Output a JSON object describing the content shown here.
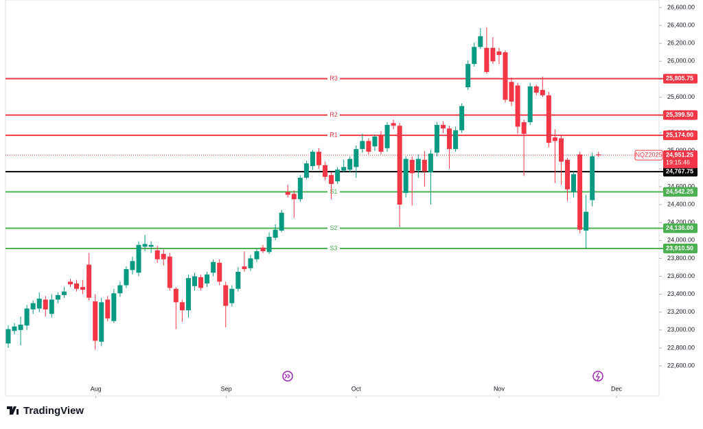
{
  "chart_data": {
    "type": "candlestick",
    "up_color": "#089981",
    "down_color": "#f23645",
    "xlim": [
      -0.44,
      104.75
    ],
    "xticks": [
      {
        "value": 14.1,
        "label": "Aug"
      },
      {
        "value": 35.1,
        "label": "Sep"
      },
      {
        "value": 56,
        "label": "Oct"
      },
      {
        "value": 79,
        "label": "Nov"
      },
      {
        "value": 97.9,
        "label": "Dec"
      }
    ],
    "ylim": [
      22263,
      26684
    ],
    "yticks": [
      {
        "value": 22600,
        "label": "22,600.00"
      },
      {
        "value": 22800,
        "label": "22,800.00"
      },
      {
        "value": 23000,
        "label": "23,000.00"
      },
      {
        "value": 23200,
        "label": "23,200.00"
      },
      {
        "value": 23400,
        "label": "23,400.00"
      },
      {
        "value": 23600,
        "label": "23,600.00"
      },
      {
        "value": 23800,
        "label": "23,800.00"
      },
      {
        "value": 24000,
        "label": "24,000.00"
      },
      {
        "value": 24200,
        "label": "24,200.00"
      },
      {
        "value": 24400,
        "label": "24,400.00"
      },
      {
        "value": 24600,
        "label": "24,600.00"
      },
      {
        "value": 24800,
        "label": "24,800.00"
      },
      {
        "value": 25000,
        "label": "25,000.00"
      },
      {
        "value": 25200,
        "label": "25,200.00"
      },
      {
        "value": 25400,
        "label": "25,400.00"
      },
      {
        "value": 25600,
        "label": "25,600.00"
      },
      {
        "value": 25800,
        "label": "25,800.00"
      },
      {
        "value": 26000,
        "label": "26,000.00"
      },
      {
        "value": 26200,
        "label": "26,200.00"
      },
      {
        "value": 26400,
        "label": "26,400.00"
      },
      {
        "value": 26600,
        "label": "26,600.00"
      }
    ],
    "open": [
      22850,
      22990,
      23000,
      23050,
      23230,
      23240,
      23340,
      23180,
      23340,
      23390,
      23540,
      23520,
      23480,
      23730,
      23320,
      22870,
      23340,
      23100,
      23410,
      23500,
      23670,
      23640,
      23930,
      23930,
      23890,
      23850,
      23820,
      23460,
      23310,
      23220,
      23490,
      23590,
      23520,
      23640,
      23750,
      23500,
      23300,
      23460,
      23710,
      23690,
      23790,
      23920,
      23870,
      24030,
      24110,
      24540,
      24520,
      24460,
      24700,
      24830,
      24990,
      24840,
      24730,
      24660,
      24780,
      24790,
      24820,
      25020,
      25110,
      25050,
      25170,
      25030,
      25310,
      25280,
      24530,
      24900,
      24780,
      24900,
      24760,
      24980,
      25290,
      25250,
      25020,
      25230,
      25710,
      25970,
      26160,
      26150,
      26150,
      26110,
      26100,
      25770,
      25730,
      25320,
      25320,
      25720,
      25680,
      25620,
      25150,
      25140,
      24900,
      24540,
      24960,
      24110,
      24450,
      24960
    ],
    "high": [
      23050,
      23080,
      23150,
      23280,
      23330,
      23420,
      23380,
      23400,
      23420,
      23480,
      23570,
      23560,
      23560,
      23860,
      23400,
      23360,
      23380,
      23460,
      23540,
      23710,
      23820,
      23990,
      24060,
      23990,
      23940,
      23900,
      23860,
      23480,
      23340,
      23620,
      23640,
      23620,
      23650,
      23790,
      23790,
      23540,
      23500,
      23700,
      23880,
      23840,
      23910,
      23950,
      24090,
      24180,
      24340,
      24620,
      24560,
      24730,
      24890,
      25010,
      25030,
      24880,
      24760,
      24820,
      24900,
      24940,
      25060,
      25190,
      25140,
      25180,
      25220,
      25320,
      25350,
      25310,
      24940,
      24940,
      24960,
      25000,
      25010,
      25320,
      25330,
      25280,
      25270,
      25530,
      26010,
      26210,
      26370,
      26380,
      26270,
      26150,
      26120,
      25820,
      25760,
      25350,
      25760,
      25740,
      25830,
      25660,
      25240,
      25180,
      24920,
      24770,
      24990,
      24510,
      24980,
      24990
    ],
    "low": [
      22800,
      22950,
      22830,
      23000,
      23180,
      23200,
      23150,
      23140,
      23300,
      23360,
      23480,
      23430,
      23400,
      23330,
      22780,
      22820,
      23100,
      23080,
      23370,
      23470,
      23620,
      23600,
      23880,
      23860,
      23750,
      23720,
      23440,
      23010,
      23090,
      23140,
      23440,
      23440,
      23480,
      23600,
      23500,
      23030,
      23260,
      23430,
      23650,
      23660,
      23760,
      23860,
      23850,
      24000,
      24090,
      24480,
      24250,
      24430,
      24680,
      24790,
      24800,
      24670,
      24460,
      24630,
      24760,
      24760,
      24700,
      24980,
      24960,
      25000,
      24960,
      24990,
      25240,
      24150,
      24480,
      24390,
      24700,
      24600,
      24400,
      24940,
      25200,
      24800,
      24990,
      25200,
      25680,
      25940,
      26140,
      25860,
      25970,
      25970,
      25540,
      25500,
      25190,
      24720,
      25290,
      25620,
      25600,
      25040,
      24640,
      24620,
      24440,
      24480,
      24080,
      23910,
      24380,
      24930
    ],
    "close": [
      23010,
      23040,
      23060,
      23240,
      23300,
      23350,
      23230,
      23340,
      23390,
      23430,
      23510,
      23460,
      23450,
      23360,
      22880,
      23310,
      23130,
      23410,
      23500,
      23680,
      23770,
      23950,
      23960,
      23950,
      23790,
      23790,
      23470,
      23310,
      23220,
      23580,
      23600,
      23470,
      23620,
      23760,
      23540,
      23270,
      23460,
      23650,
      23680,
      23800,
      23880,
      23880,
      24040,
      24120,
      24310,
      24510,
      24460,
      24700,
      24860,
      24990,
      24840,
      24710,
      24630,
      24790,
      24820,
      24910,
      25020,
      25110,
      24990,
      25160,
      24990,
      25290,
      25280,
      24400,
      24910,
      24750,
      24910,
      24770,
      24970,
      25290,
      25250,
      25020,
      25230,
      25500,
      25970,
      26160,
      26280,
      25880,
      26000,
      26070,
      25570,
      25550,
      25270,
      25190,
      25720,
      25650,
      25620,
      25090,
      25110,
      24880,
      24570,
      24740,
      24120,
      24320,
      24940,
      24951.25
    ],
    "levels": [
      {
        "name": "R3",
        "value": 25805.75,
        "label": "25,805.75",
        "color": "#f23645"
      },
      {
        "name": "R2",
        "value": 25399.5,
        "label": "25,399.50",
        "color": "#f23645"
      },
      {
        "name": "R1",
        "value": 25174,
        "label": "25,174.00",
        "color": "#f23645"
      },
      {
        "value": 24767.75,
        "label": "24,767.75",
        "color": "#000000"
      },
      {
        "name": "S1",
        "value": 24542.25,
        "label": "24,542.25",
        "color": "#4caf50"
      },
      {
        "name": "S2",
        "value": 24136,
        "label": "24,136.00",
        "color": "#4caf50"
      },
      {
        "name": "S3",
        "value": 23910.5,
        "label": "23,910.50",
        "color": "#4caf50"
      }
    ],
    "last_price": {
      "symbol": "NQZ2025",
      "value": 24951.25,
      "label": "24,951.25",
      "countdown": "19:15:46",
      "color": "#f23645"
    },
    "brand": "TradingView"
  }
}
